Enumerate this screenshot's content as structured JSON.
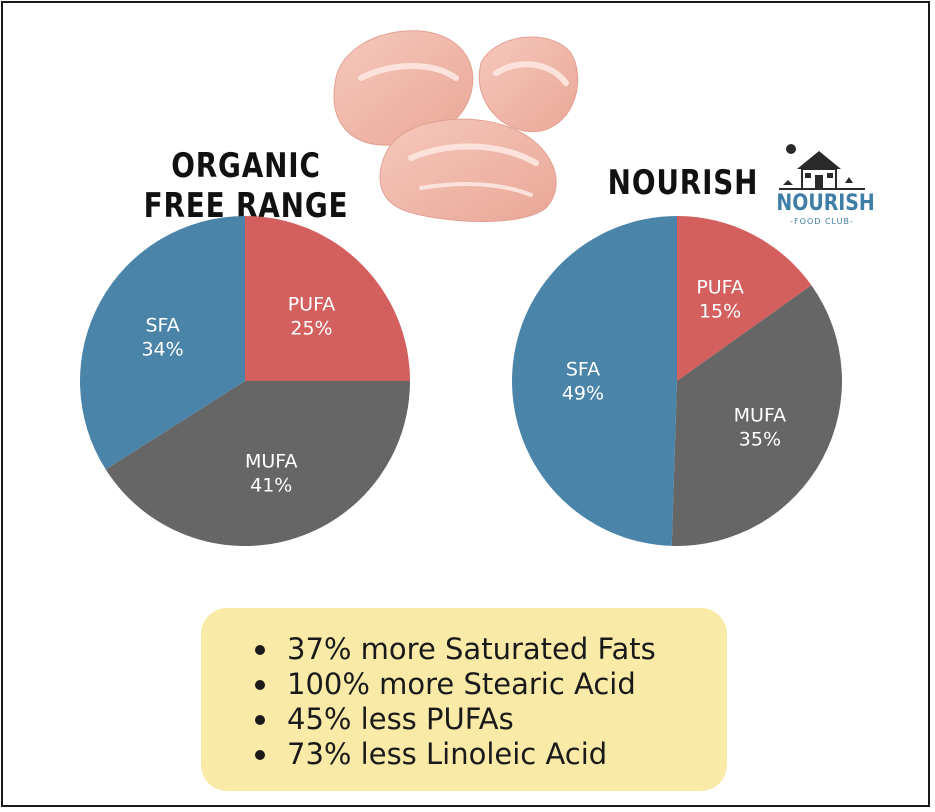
{
  "chart_data": [
    {
      "type": "pie",
      "title": "ORGANIC FREE RANGE",
      "series": [
        {
          "label": "PUFA",
          "value": 25,
          "display": "25%",
          "color": "#d35f5f"
        },
        {
          "label": "MUFA",
          "value": 41,
          "display": "41%",
          "color": "#666666"
        },
        {
          "label": "SFA",
          "value": 34,
          "display": "34%",
          "color": "#4a84a8"
        }
      ]
    },
    {
      "type": "pie",
      "title": "NOURISH",
      "series": [
        {
          "label": "PUFA",
          "value": 15,
          "display": "15%",
          "color": "#d35f5f"
        },
        {
          "label": "MUFA",
          "value": 35,
          "display": "35%",
          "color": "#666666"
        },
        {
          "label": "SFA",
          "value": 49,
          "display": "49%",
          "color": "#4a84a8"
        }
      ]
    }
  ],
  "logo": {
    "word": "NOURISH",
    "sub": "-FOOD CLUB-"
  },
  "summary": {
    "items": [
      "37% more Saturated Fats",
      "100% more Stearic Acid",
      "45% less PUFAs",
      "73% less Linoleic Acid"
    ]
  }
}
